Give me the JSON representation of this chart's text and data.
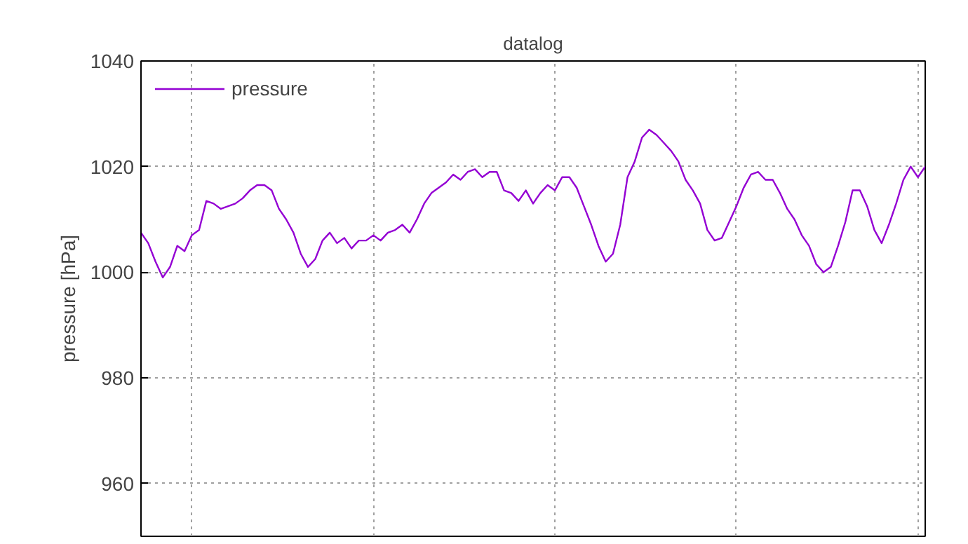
{
  "chart_data": {
    "type": "line",
    "title": "datalog",
    "ylabel": "pressure [hPa]",
    "ylim": [
      950,
      1040
    ],
    "yticks": [
      960,
      980,
      1000,
      1020,
      1040
    ],
    "grid": true,
    "legend": "top left",
    "tick_labels": "y",
    "line_style": "solid",
    "categories": [
      null,
      null,
      null,
      null,
      null,
      null,
      null,
      null,
      null,
      null,
      null,
      null,
      null,
      null,
      null,
      null,
      null,
      null,
      null,
      null,
      null,
      null,
      null,
      null,
      null,
      null,
      null,
      null,
      null,
      null,
      null,
      null,
      null,
      null,
      null,
      null,
      null,
      null,
      null,
      null,
      null,
      null,
      null,
      null,
      null,
      null,
      null,
      null,
      null,
      null,
      null,
      null,
      null,
      null,
      null,
      null,
      null,
      null,
      null,
      null,
      null,
      null,
      null,
      null,
      null,
      null,
      null,
      null,
      null,
      null,
      null,
      null,
      null,
      null,
      null,
      null,
      null,
      null,
      null,
      null,
      null,
      null,
      null,
      null,
      null,
      null,
      null,
      null,
      null,
      null,
      null,
      null,
      null,
      null,
      null,
      null,
      null,
      null,
      null,
      null,
      null,
      null,
      null,
      null,
      null,
      null,
      null,
      null,
      null
    ],
    "series": [
      {
        "name": "pressure",
        "color": "#9400d3",
        "values": [
          1007.5,
          1005.5,
          1002,
          999,
          1001,
          1005,
          1004,
          1007,
          1008,
          1013.5,
          1013,
          1012,
          1012.5,
          1013,
          1014,
          1015.5,
          1016.5,
          1016.5,
          1015.5,
          1012,
          1010,
          1007.5,
          1003.5,
          1001,
          1002.5,
          1006,
          1007.5,
          1005.5,
          1006.5,
          1004.5,
          1006,
          1006,
          1007,
          1006,
          1007.5,
          1008,
          1009,
          1007.5,
          1010,
          1013,
          1015,
          1016,
          1017,
          1018.5,
          1017.5,
          1019,
          1019.5,
          1018,
          1019,
          1019,
          1015.5,
          1015,
          1013.5,
          1015.5,
          1013,
          1015,
          1016.5,
          1015.5,
          1018,
          1018,
          1016,
          1012.5,
          1009,
          1005,
          1002,
          1003.5,
          1009,
          1018,
          1021,
          1025.5,
          1027,
          1026,
          1024.5,
          1023,
          1021,
          1017.5,
          1015.5,
          1013,
          1008,
          1006,
          1006.5,
          1009.5,
          1012.5,
          1016,
          1018.5,
          1019,
          1017.5,
          1017.5,
          1015,
          1012,
          1010,
          1007,
          1005,
          1001.5,
          1000,
          1001,
          1005,
          1009.5,
          1015.5,
          1015.5,
          1012.5,
          1008,
          1005.5,
          1009,
          1013,
          1017.5,
          1020,
          1018,
          1020
        ]
      }
    ]
  }
}
